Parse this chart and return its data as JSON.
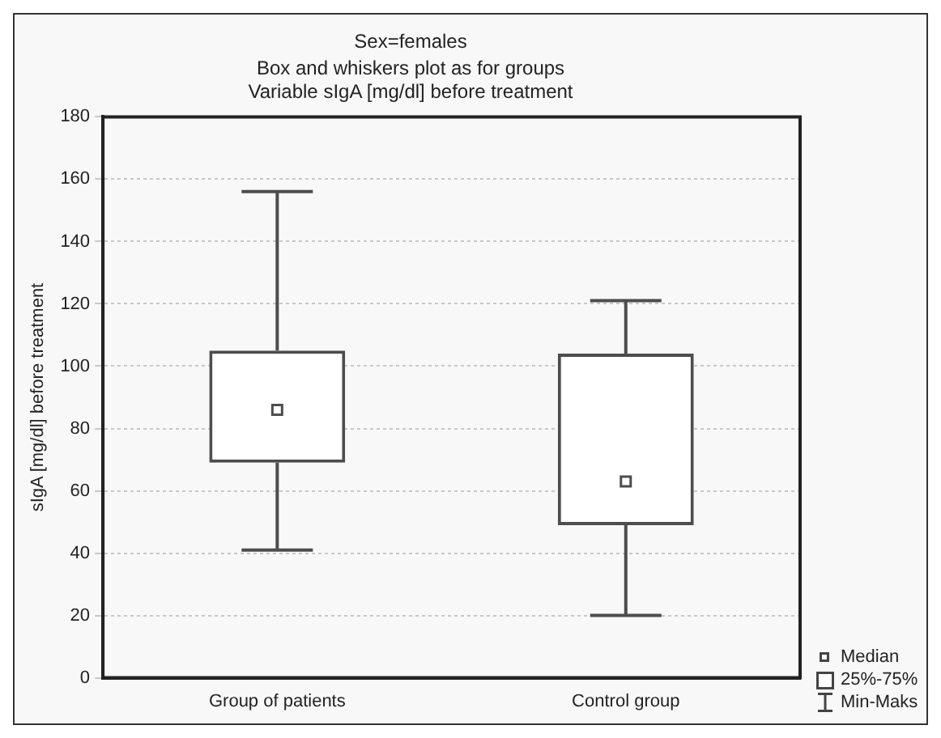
{
  "chart_data": {
    "type": "box",
    "title": "Sex=females",
    "subtitle": "Box and whiskers plot as for groups\nVariable sIgA [mg/dl] before treatment",
    "ylabel": "sIgA [mg/dl] before treatment",
    "categories": [
      "Group of patients",
      "Control group"
    ],
    "series": [
      {
        "color": "#4d4d4d",
        "boxes": [
          {
            "low": 41,
            "q1": 69,
            "median": 86,
            "q3": 105,
            "high": 156
          },
          {
            "low": 20,
            "q1": 49,
            "median": 63,
            "q3": 104,
            "high": 121
          }
        ]
      }
    ],
    "ylim": [
      0,
      180
    ],
    "yticks": [
      0,
      20,
      40,
      60,
      80,
      100,
      120,
      140,
      160,
      180
    ],
    "grid": "y",
    "annotations": [
      "Median",
      "25%-75%",
      "Min-Maks"
    ]
  }
}
